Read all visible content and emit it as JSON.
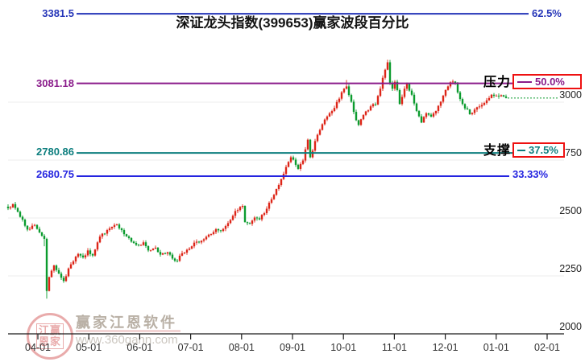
{
  "chart_data": {
    "type": "candlestick",
    "title": "深证龙头指数(399653)赢家波段百分比",
    "x_ticks": [
      "04-01",
      "05-01",
      "06-01",
      "07-01",
      "08-01",
      "09-01",
      "10-01",
      "11-01",
      "12-01",
      "01-01",
      "02-01"
    ],
    "y_ticks": [
      "3000",
      "2750",
      "2500",
      "2250",
      "2000"
    ],
    "y_tick_values": [
      3000,
      2750,
      2500,
      2250,
      2000
    ],
    "ylim": [
      2000,
      3434
    ],
    "grid": true,
    "levels": [
      {
        "value_label": "3381.5",
        "price": 3381.5,
        "pct_label": "62.5%",
        "color": "#2535b8",
        "role": "band-62.5"
      },
      {
        "value_label": "3081.18",
        "price": 3081.18,
        "pct_label": "50.0%",
        "color": "#8a1b8a",
        "role": "pressure",
        "side_label": "压力",
        "boxed": true
      },
      {
        "value_label": "2780.86",
        "price": 2780.86,
        "pct_label": "37.5%",
        "color": "#0d7e7e",
        "role": "support",
        "side_label": "支撑",
        "boxed": true
      },
      {
        "value_label": "2680.75",
        "price": 2680.75,
        "pct_label": "33.33%",
        "color": "#2424e0",
        "role": "band-33.33"
      }
    ],
    "last_price": 3018,
    "last_price_line_color": "#0b9b2e",
    "up_color": "#dd2518",
    "down_color": "#0b9b2e",
    "anchors": [
      [
        0,
        2542
      ],
      [
        2,
        2560
      ],
      [
        5,
        2505
      ],
      [
        8,
        2450
      ],
      [
        11,
        2470
      ],
      [
        13,
        2438
      ],
      [
        15,
        2410
      ],
      [
        16,
        2185
      ],
      [
        17,
        2245
      ],
      [
        19,
        2295
      ],
      [
        21,
        2260
      ],
      [
        23,
        2228
      ],
      [
        26,
        2300
      ],
      [
        29,
        2345
      ],
      [
        31,
        2330
      ],
      [
        33,
        2360
      ],
      [
        35,
        2338
      ],
      [
        38,
        2420
      ],
      [
        41,
        2448
      ],
      [
        45,
        2472
      ],
      [
        48,
        2430
      ],
      [
        51,
        2398
      ],
      [
        54,
        2382
      ],
      [
        56,
        2395
      ],
      [
        58,
        2360
      ],
      [
        61,
        2372
      ],
      [
        63,
        2342
      ],
      [
        66,
        2352
      ],
      [
        68,
        2325
      ],
      [
        70,
        2315
      ],
      [
        72,
        2348
      ],
      [
        75,
        2368
      ],
      [
        78,
        2398
      ],
      [
        80,
        2402
      ],
      [
        83,
        2428
      ],
      [
        86,
        2452
      ],
      [
        88,
        2444
      ],
      [
        91,
        2478
      ],
      [
        94,
        2530
      ],
      [
        96,
        2548
      ],
      [
        97,
        2552
      ],
      [
        98,
        2482
      ],
      [
        100,
        2475
      ],
      [
        102,
        2502
      ],
      [
        104,
        2494
      ],
      [
        107,
        2540
      ],
      [
        110,
        2600
      ],
      [
        113,
        2668
      ],
      [
        116,
        2742
      ],
      [
        117,
        2762
      ],
      [
        118,
        2752
      ],
      [
        120,
        2712
      ],
      [
        122,
        2748
      ],
      [
        124,
        2838
      ],
      [
        125,
        2762
      ],
      [
        127,
        2832
      ],
      [
        129,
        2880
      ],
      [
        131,
        2925
      ],
      [
        133,
        2952
      ],
      [
        135,
        2975
      ],
      [
        137,
        3015
      ],
      [
        139,
        3058
      ],
      [
        140,
        3068
      ],
      [
        142,
        3002
      ],
      [
        144,
        2922
      ],
      [
        145,
        2902
      ],
      [
        147,
        2945
      ],
      [
        150,
        2982
      ],
      [
        152,
        2990
      ],
      [
        154,
        3058
      ],
      [
        156,
        3140
      ],
      [
        157,
        3172
      ],
      [
        158,
        3082
      ],
      [
        159,
        3058
      ],
      [
        160,
        3088
      ],
      [
        161,
        3052
      ],
      [
        162,
        2992
      ],
      [
        164,
        3058
      ],
      [
        165,
        3078
      ],
      [
        167,
        3032
      ],
      [
        169,
        2962
      ],
      [
        171,
        2912
      ],
      [
        173,
        2952
      ],
      [
        175,
        2938
      ],
      [
        177,
        2962
      ],
      [
        179,
        3002
      ],
      [
        180,
        3028
      ],
      [
        182,
        3068
      ],
      [
        183,
        3086
      ],
      [
        185,
        3082
      ],
      [
        186,
        3042
      ],
      [
        188,
        2992
      ],
      [
        191,
        2948
      ],
      [
        193,
        2968
      ],
      [
        196,
        2988
      ],
      [
        198,
        3008
      ],
      [
        200,
        3032
      ],
      [
        202,
        3028
      ],
      [
        204,
        3030
      ],
      [
        206,
        3018
      ]
    ],
    "wick_overrides": {
      "low": {
        "15": 2378,
        "16": 2152
      },
      "high": {
        "157": 3183,
        "140": 3096
      }
    }
  },
  "colors": {
    "box_border": "#ee1111",
    "grid": "#ececec",
    "axis": "#1a1a1a",
    "tick_label": "#333333",
    "watermark_pink": "rgba(220,120,120,0.62)",
    "watermark_gray": "#b9b0a5",
    "watermark_light": "#ccc7c0"
  },
  "watermark": {
    "seal_top": "江赢",
    "seal_bottom": "恩家",
    "name": "赢家江恩软件",
    "url": "www.360gann.com"
  }
}
